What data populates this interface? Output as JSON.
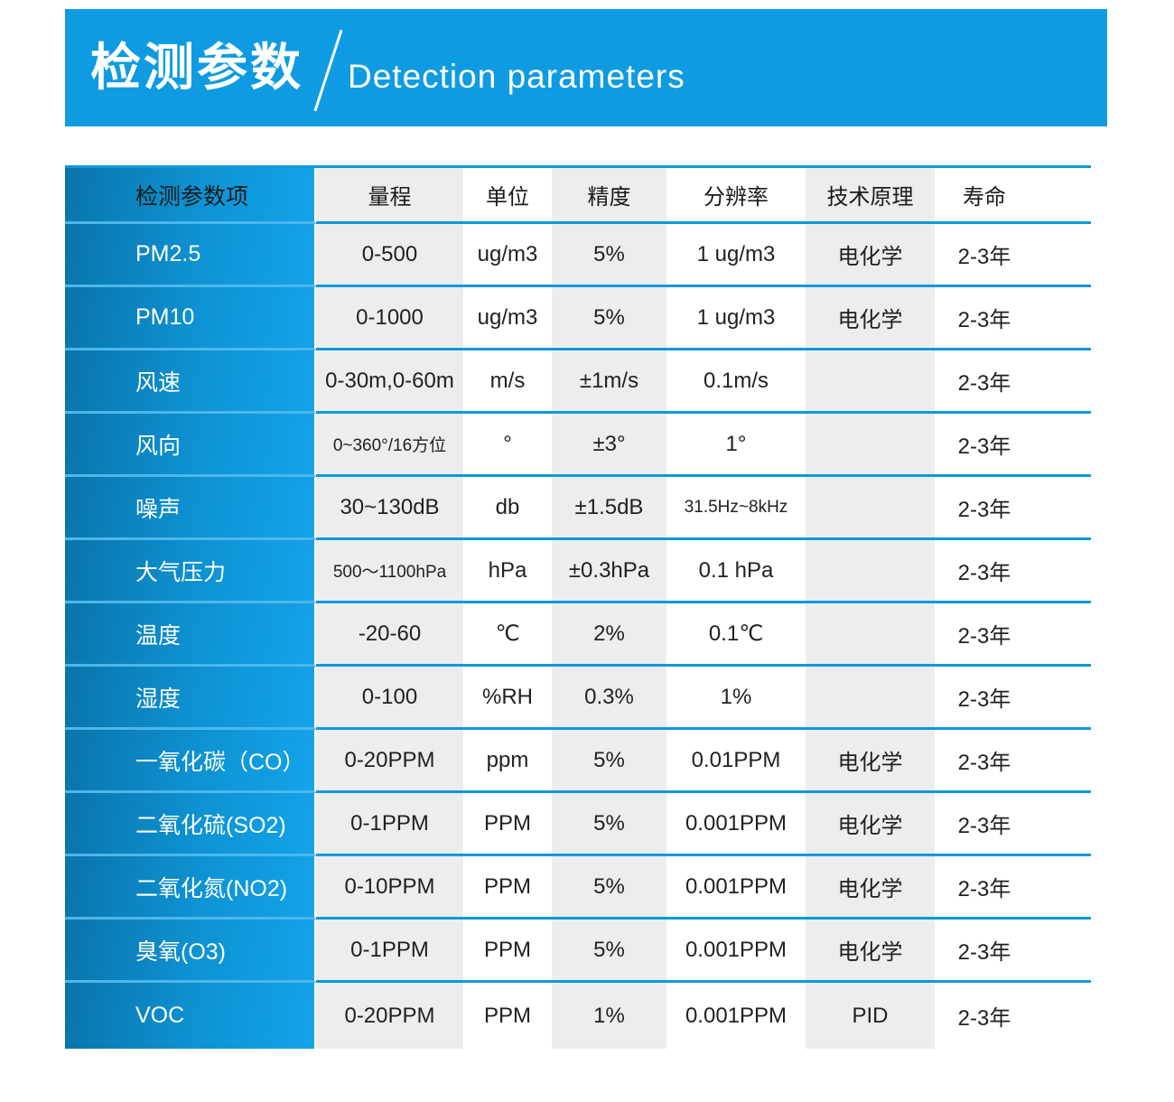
{
  "banner": {
    "title_zh": "检测参数",
    "title_en": "Detection parameters",
    "background": "#0e9be2"
  },
  "colors": {
    "banner_blue": "#0e9be2",
    "row_line_blue": "#0f98dd",
    "label_gradient_start": "#0a74aa",
    "label_gradient_end": "#14a3ea",
    "label_separator_blue": "#4db7eb",
    "stripe_gray": "#ededed",
    "text_dark": "#212121",
    "text_white": "#ffffff"
  },
  "table": {
    "headers": [
      "检测参数项",
      "量程",
      "单位",
      "精度",
      "分辨率",
      "技术原理",
      "寿命"
    ],
    "rows": [
      {
        "name": "PM2.5",
        "range": "0-500",
        "unit": "ug/m3",
        "accuracy": "5%",
        "resolution": "1 ug/m3",
        "principle": "电化学",
        "lifetime": "2-3年"
      },
      {
        "name": "PM10",
        "range": "0-1000",
        "unit": "ug/m3",
        "accuracy": "5%",
        "resolution": "1 ug/m3",
        "principle": "电化学",
        "lifetime": "2-3年"
      },
      {
        "name": "风速",
        "range": "0-30m,0-60m",
        "unit": "m/s",
        "accuracy": "±1m/s",
        "resolution": "0.1m/s",
        "principle": "",
        "lifetime": "2-3年"
      },
      {
        "name": "风向",
        "range": "0~360°/16方位",
        "unit": "°",
        "accuracy": "±3°",
        "resolution": "1°",
        "principle": "",
        "lifetime": "2-3年"
      },
      {
        "name": "噪声",
        "range": "30~130dB",
        "unit": "db",
        "accuracy": "±1.5dB",
        "resolution": "31.5Hz~8kHz",
        "principle": "",
        "lifetime": "2-3年"
      },
      {
        "name": "大气压力",
        "range": "500～1100hPa",
        "unit": "hPa",
        "accuracy": "±0.3hPa",
        "resolution": "0.1 hPa",
        "principle": "",
        "lifetime": "2-3年"
      },
      {
        "name": "温度",
        "range": "-20-60",
        "unit": "℃",
        "accuracy": "2%",
        "resolution": "0.1℃",
        "principle": "",
        "lifetime": "2-3年"
      },
      {
        "name": "湿度",
        "range": "0-100",
        "unit": "%RH",
        "accuracy": "0.3%",
        "resolution": "1%",
        "principle": "",
        "lifetime": "2-3年"
      },
      {
        "name": "一氧化碳（CO）",
        "range": "0-20PPM",
        "unit": "ppm",
        "accuracy": "5%",
        "resolution": "0.01PPM",
        "principle": "电化学",
        "lifetime": "2-3年"
      },
      {
        "name": "二氧化硫(SO2)",
        "range": "0-1PPM",
        "unit": "PPM",
        "accuracy": "5%",
        "resolution": "0.001PPM",
        "principle": "电化学",
        "lifetime": "2-3年"
      },
      {
        "name": "二氧化氮(NO2)",
        "range": "0-10PPM",
        "unit": "PPM",
        "accuracy": "5%",
        "resolution": "0.001PPM",
        "principle": "电化学",
        "lifetime": "2-3年"
      },
      {
        "name": "臭氧(O3)",
        "range": "0-1PPM",
        "unit": "PPM",
        "accuracy": "5%",
        "resolution": "0.001PPM",
        "principle": "电化学",
        "lifetime": "2-3年"
      },
      {
        "name": "VOC",
        "range": "0-20PPM",
        "unit": "PPM",
        "accuracy": "1%",
        "resolution": "0.001PPM",
        "principle": "PID",
        "lifetime": "2-3年"
      }
    ]
  }
}
